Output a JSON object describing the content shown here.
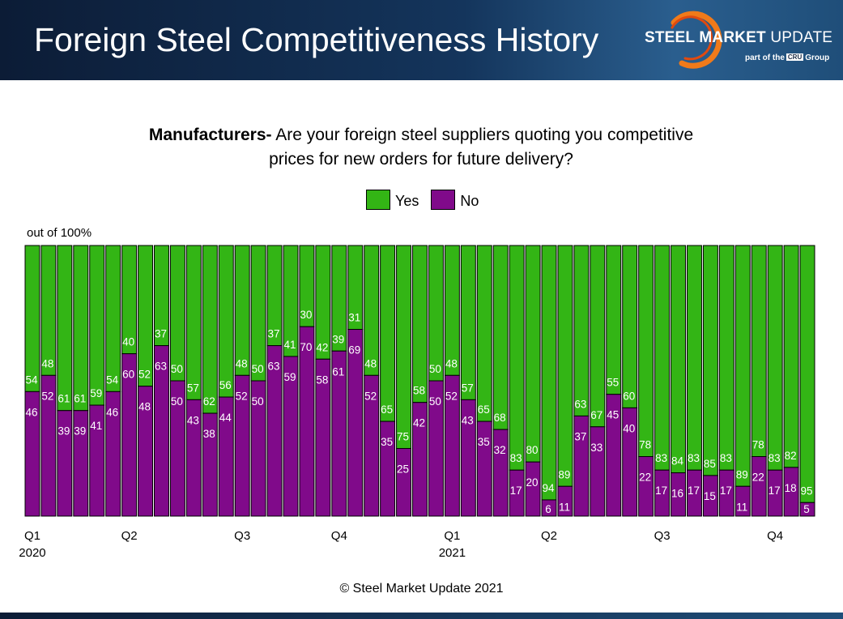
{
  "header": {
    "title": "Foreign Steel Competitiveness History",
    "brand_bold": "STEEL MARKET",
    "brand_light": "UPDATE",
    "brand_sub_prefix": "part of the",
    "brand_sub_cru": "CRU",
    "brand_sub_suffix": "Group"
  },
  "colors": {
    "yes": "#33b515",
    "no": "#800a8a",
    "header": "#14355c"
  },
  "chart_data": {
    "type": "bar",
    "stacked": true,
    "title_bold": "Manufacturers-",
    "title_rest": " Are your foreign steel suppliers quoting you competitive prices for new orders for future delivery?",
    "unit_label": "out of 100%",
    "ylim": [
      0,
      100
    ],
    "legend_position": "top-center",
    "series": [
      {
        "name": "Yes",
        "values": [
          54,
          48,
          61,
          61,
          59,
          54,
          40,
          52,
          37,
          50,
          57,
          62,
          56,
          48,
          50,
          37,
          41,
          30,
          42,
          39,
          31,
          48,
          65,
          75,
          58,
          50,
          48,
          57,
          65,
          68,
          83,
          80,
          94,
          89,
          63,
          67,
          55,
          60,
          78,
          83,
          84,
          83,
          85,
          83,
          89,
          78,
          83,
          82,
          95
        ]
      },
      {
        "name": "No",
        "values": [
          46,
          52,
          39,
          39,
          41,
          46,
          60,
          48,
          63,
          50,
          43,
          38,
          44,
          52,
          50,
          63,
          59,
          70,
          58,
          61,
          69,
          52,
          35,
          25,
          42,
          50,
          52,
          43,
          35,
          32,
          17,
          20,
          6,
          11,
          37,
          33,
          45,
          40,
          22,
          17,
          16,
          17,
          15,
          17,
          11,
          22,
          17,
          18,
          5
        ]
      }
    ],
    "x_ticks": [
      {
        "index": 0,
        "label": "Q1",
        "year": "2020"
      },
      {
        "index": 6,
        "label": "Q2",
        "year": ""
      },
      {
        "index": 13,
        "label": "Q3",
        "year": ""
      },
      {
        "index": 19,
        "label": "Q4",
        "year": ""
      },
      {
        "index": 26,
        "label": "Q1",
        "year": "2021"
      },
      {
        "index": 32,
        "label": "Q2",
        "year": ""
      },
      {
        "index": 39,
        "label": "Q3",
        "year": ""
      },
      {
        "index": 46,
        "label": "Q4",
        "year": ""
      }
    ]
  },
  "footer": {
    "copyright": "© Steel Market Update 2021"
  }
}
